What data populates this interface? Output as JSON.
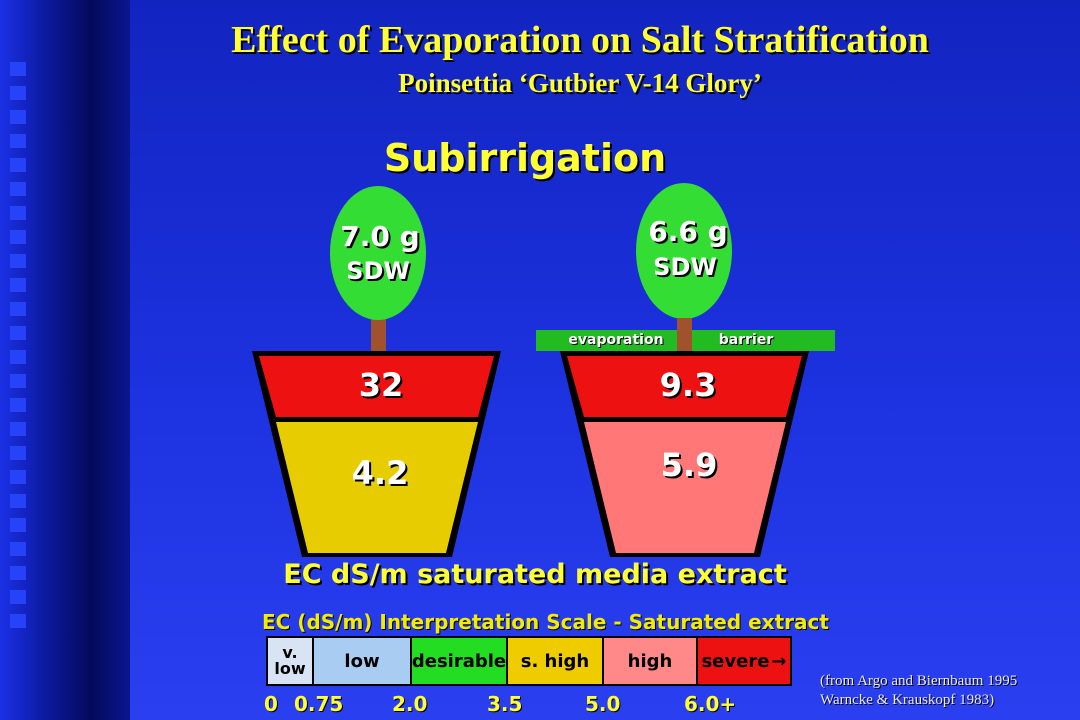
{
  "title": "Effect of Evaporation on Salt Stratification",
  "subtitle": "Poinsettia ‘Gutbier V-14 Glory’",
  "section_label": "Subirrigation",
  "pots": [
    {
      "weight": "7.0 g",
      "weight_label": "SDW",
      "top_ec": "32",
      "bottom_ec": "4.2",
      "top_color": "#ee1111",
      "bottom_color": "#e6cc00"
    },
    {
      "weight": "6.6 g",
      "weight_label": "SDW",
      "top_ec": "9.3",
      "bottom_ec": "5.9",
      "top_color": "#ee1111",
      "bottom_color": "#ff7777",
      "barrier_left": "evaporation",
      "barrier_right": "barrier"
    }
  ],
  "caption": "EC dS/m saturated media extract",
  "scale": {
    "title": "EC (dS/m) Interpretation Scale - Saturated extract",
    "categories": [
      {
        "label_line1": "v.",
        "label_line2": "low",
        "color": "#d8e4f4"
      },
      {
        "label": "low",
        "color": "#a8ccf2"
      },
      {
        "label": "desirable",
        "color": "#22dd22"
      },
      {
        "label": "s. high",
        "color": "#eecc00"
      },
      {
        "label": "high",
        "color": "#ff8888"
      },
      {
        "label": "severe",
        "arrow": "→",
        "color": "#ee1111"
      }
    ],
    "ticks": [
      "0",
      "0.75",
      "2.0",
      "3.5",
      "5.0",
      "6.0+"
    ]
  },
  "source": {
    "line1": "(from Argo and Biernbaum 1995",
    "line2": "Warncke & Krauskopf 1983)"
  },
  "colors": {
    "heading": "#ffff33",
    "background": "#1f2fd6",
    "foliage": "#33dd33",
    "stem": "#a0522d"
  }
}
